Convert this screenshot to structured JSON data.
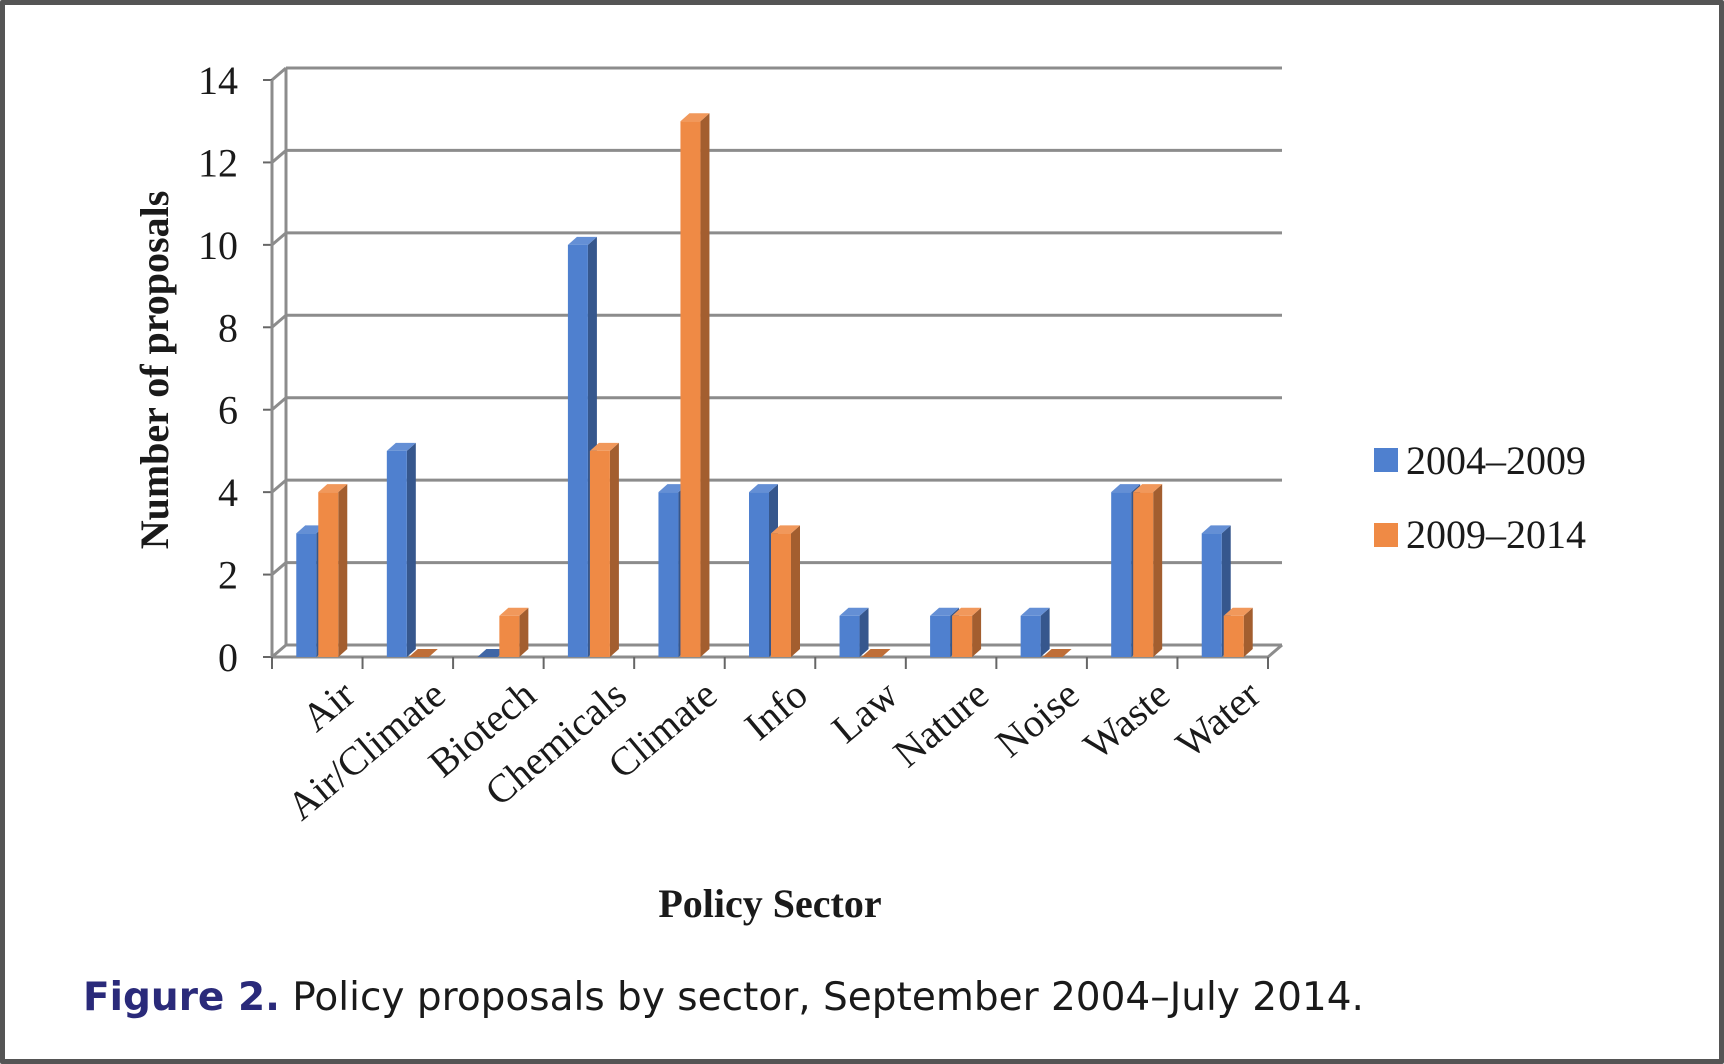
{
  "colors": {
    "series_2004": "#4f80cf",
    "series_2009": "#ef8a45",
    "gridline": "#8c8c8c",
    "frame": "#555555"
  },
  "caption": {
    "label": "Figure 2.",
    "text": " Policy proposals by sector, September 2004–July 2014."
  },
  "chart_data": {
    "type": "bar",
    "style": "3d-clustered-column",
    "categories": [
      "Air",
      "Air/Climate",
      "Biotech",
      "Chemicals",
      "Climate",
      "Info",
      "Law",
      "Nature",
      "Noise",
      "Waste",
      "Water"
    ],
    "series": [
      {
        "name": "2004–2009",
        "values": [
          3,
          5,
          0,
          10,
          4,
          4,
          1,
          1,
          1,
          4,
          3
        ]
      },
      {
        "name": "2009–2014",
        "values": [
          4,
          0,
          1,
          5,
          13,
          3,
          0,
          1,
          0,
          4,
          1
        ]
      }
    ],
    "xlabel": "Policy Sector",
    "ylabel": "Number of proposals",
    "ylim": [
      0,
      14
    ],
    "yticks": [
      0,
      2,
      4,
      6,
      8,
      10,
      12,
      14
    ],
    "grid": true,
    "legend": "right"
  }
}
